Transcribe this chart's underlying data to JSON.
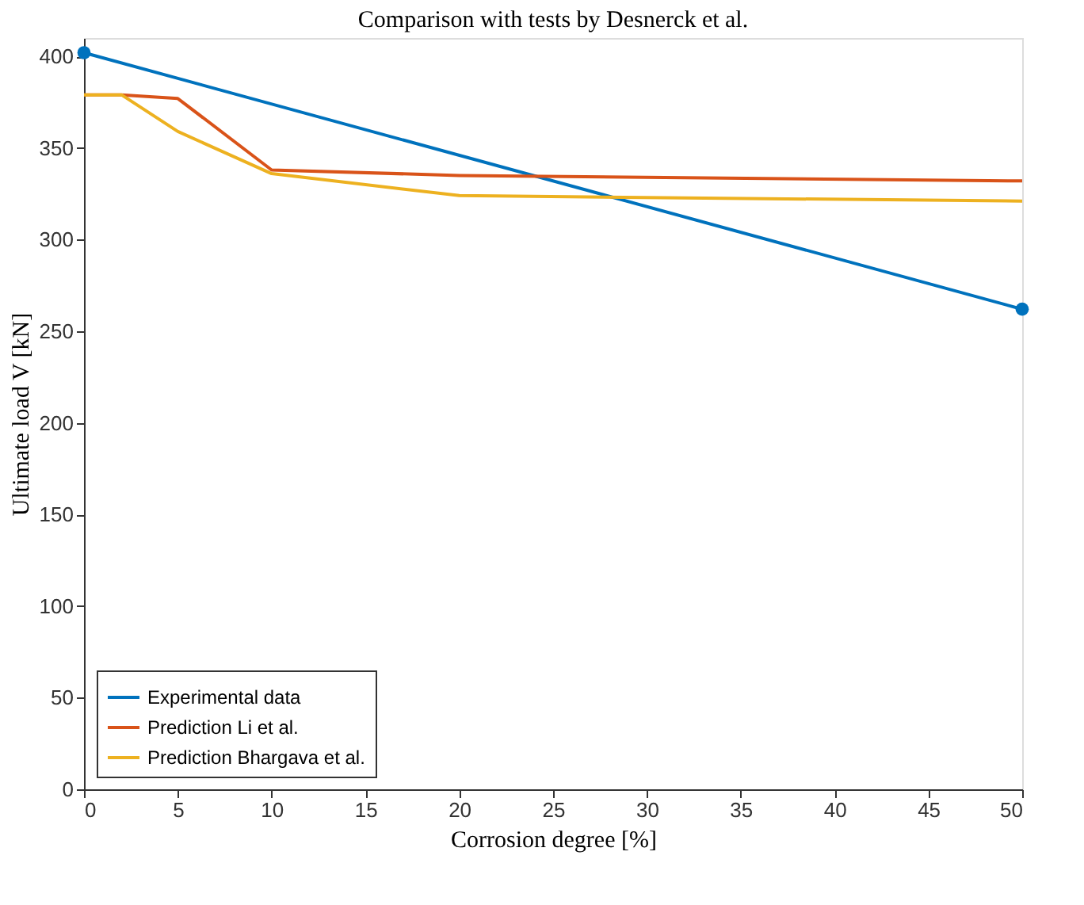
{
  "chart_data": {
    "type": "line",
    "title": "Comparison with tests by Desnerck et al.",
    "xlabel": "Corrosion degree [%]",
    "ylabel": "Ultimate load V [kN]",
    "xlim": [
      0,
      50
    ],
    "ylim": [
      0,
      410
    ],
    "xticks": [
      0,
      5,
      10,
      15,
      20,
      25,
      30,
      35,
      40,
      45,
      50
    ],
    "yticks": [
      0,
      50,
      100,
      150,
      200,
      250,
      300,
      350,
      400
    ],
    "grid": false,
    "legend": "bottom left",
    "line_style": "solid",
    "series": [
      {
        "name": "Experimental data",
        "color": "#0072bd",
        "x": [
          0,
          50
        ],
        "values": [
          402,
          262
        ],
        "marker": "circle"
      },
      {
        "name": "Prediction Li et al.",
        "color": "#d95319",
        "x": [
          0,
          2,
          5,
          10,
          20,
          50
        ],
        "values": [
          379,
          379,
          377,
          338,
          335,
          332
        ],
        "marker": "none"
      },
      {
        "name": "Prediction Bhargava et al.",
        "color": "#edb120",
        "x": [
          0,
          2,
          5,
          10,
          20,
          50
        ],
        "values": [
          379,
          379,
          359,
          336,
          324,
          321
        ],
        "marker": "none"
      }
    ]
  }
}
